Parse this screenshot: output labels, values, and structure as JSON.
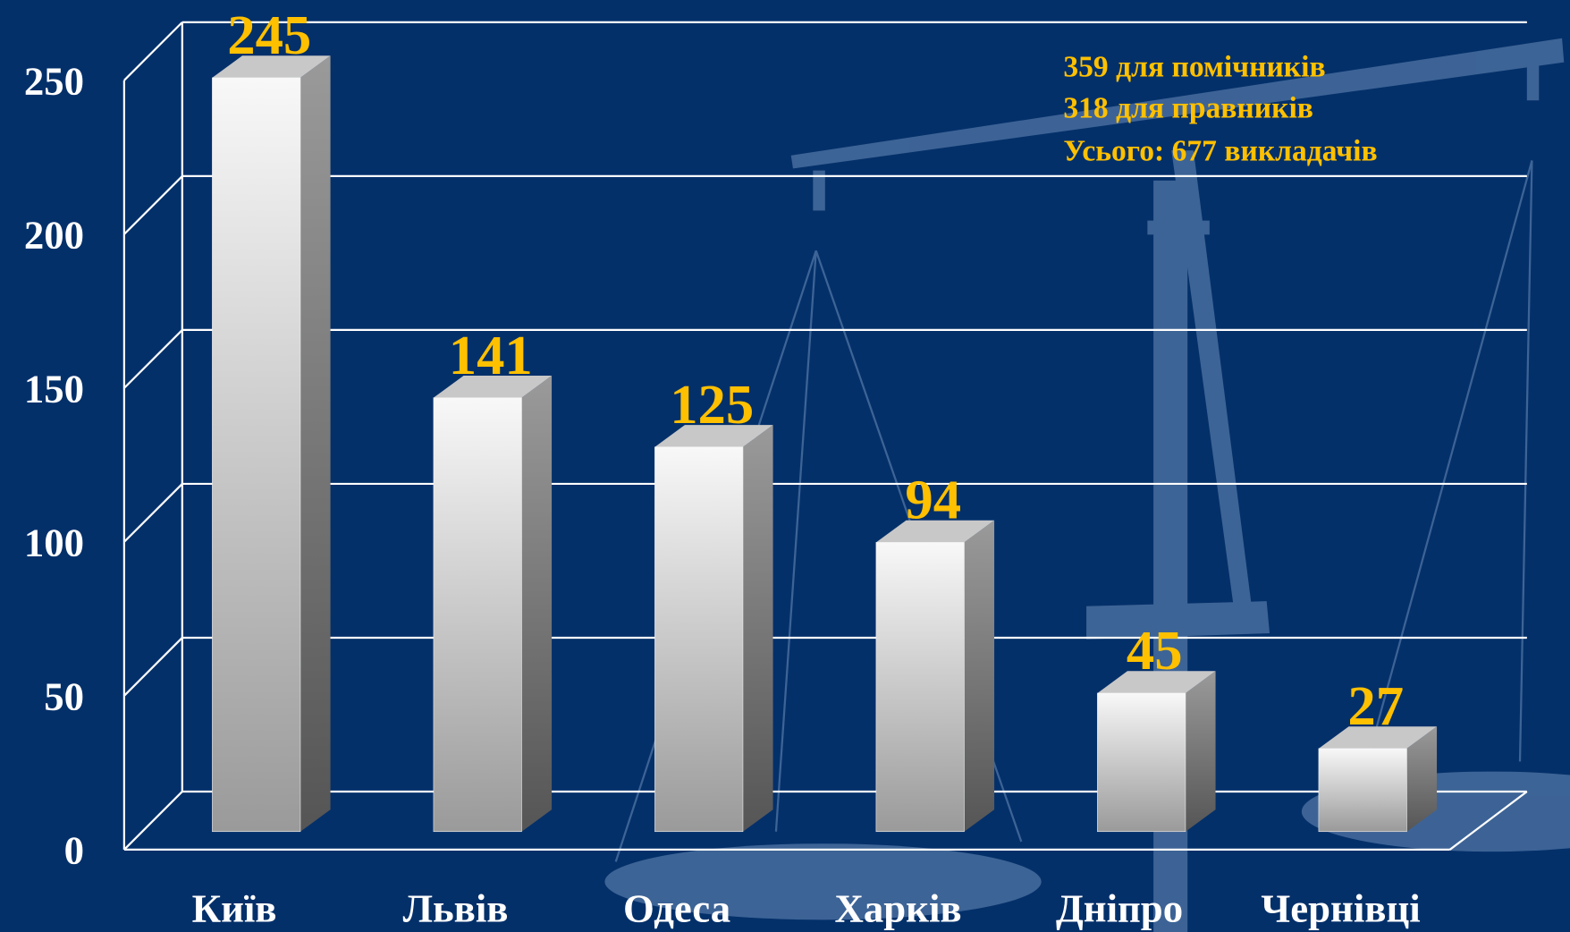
{
  "chart_data": {
    "type": "bar",
    "categories": [
      "Київ",
      "Львів",
      "Одеса",
      "Харків",
      "Дніпро",
      "Чернівці"
    ],
    "values": [
      245,
      141,
      125,
      94,
      45,
      27
    ],
    "color": "#f4f4f4",
    "ylim": [
      0,
      250
    ],
    "yticks": [
      0,
      50,
      100,
      150,
      200,
      250
    ],
    "grid": true,
    "annotations": [
      "359 для помічників",
      "318 для правників",
      "Усього: 677 викладачів"
    ]
  }
}
